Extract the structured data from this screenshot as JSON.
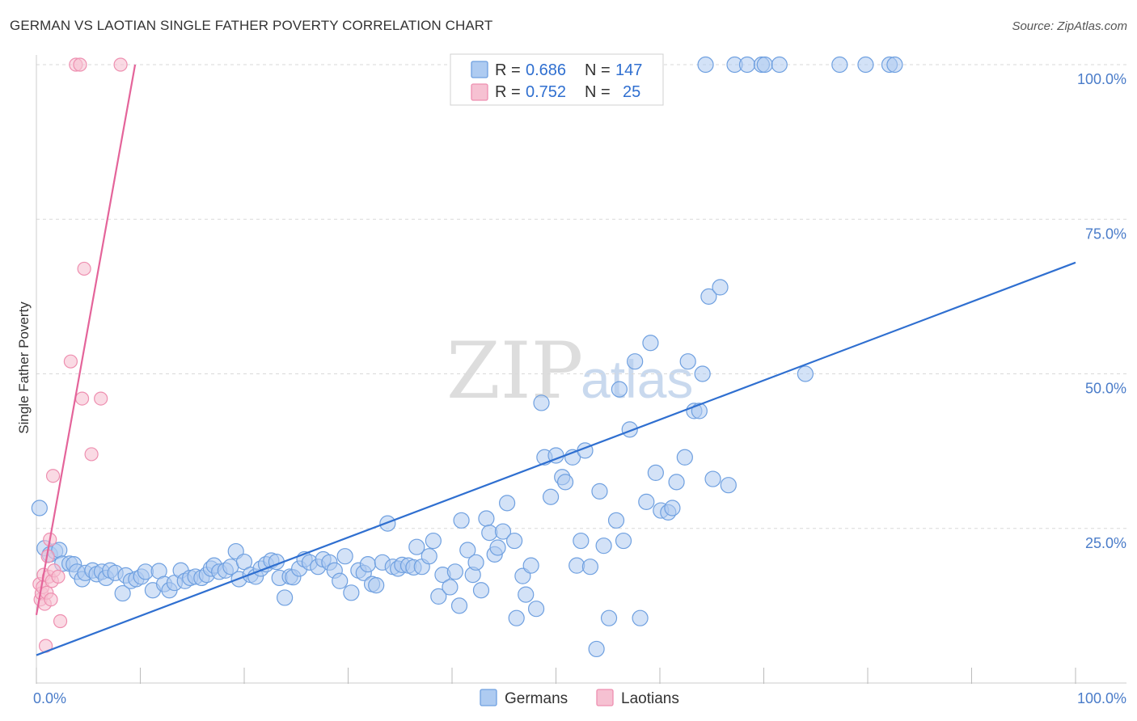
{
  "title": "GERMAN VS LAOTIAN SINGLE FATHER POVERTY CORRELATION CHART",
  "source": "Source: ZipAtlas.com",
  "watermark": {
    "zip": "ZIP",
    "atlas": "atlas"
  },
  "colors": {
    "german_fill": "#aecbf1",
    "german_stroke": "#6fa0e0",
    "german_line": "#2f6fd0",
    "laotian_fill": "#f6c1d2",
    "laotian_stroke": "#ee8fb0",
    "laotian_line": "#e4649a",
    "grid": "#d9d9d9",
    "axis_text": "#4a7cc9"
  },
  "legend": {
    "rows": [
      {
        "r_label": "R = ",
        "r_value": "0.686",
        "n_label": "N = ",
        "n_value": "147"
      },
      {
        "r_label": "R = ",
        "r_value": "0.752",
        "n_label": "N = ",
        "n_value": "25"
      }
    ]
  },
  "bottom_legend": {
    "germans": "Germans",
    "laotians": "Laotians"
  },
  "chart_data": {
    "type": "scatter",
    "title": "GERMAN VS LAOTIAN SINGLE FATHER POVERTY CORRELATION CHART",
    "xlabel": "",
    "ylabel": "Single Father Poverty",
    "xlim": [
      0,
      100
    ],
    "ylim": [
      0,
      100
    ],
    "x_tick_labels": [
      "0.0%",
      "100.0%"
    ],
    "y_ticks": [
      25,
      50,
      75,
      100
    ],
    "y_tick_labels": [
      "25.0%",
      "50.0%",
      "75.0%",
      "100.0%"
    ],
    "grid": true,
    "series": [
      {
        "name": "Germans",
        "r": 0.686,
        "n": 147,
        "trend": {
          "x": [
            0,
            100
          ],
          "y": [
            4.5,
            68
          ]
        },
        "points": [
          [
            0.3,
            28.3
          ],
          [
            0.8,
            21.8
          ],
          [
            1.3,
            20.8
          ],
          [
            1.8,
            21.3
          ],
          [
            2.2,
            21.5
          ],
          [
            2.5,
            19.3
          ],
          [
            3.2,
            19.3
          ],
          [
            3.6,
            19.2
          ],
          [
            3.9,
            18.0
          ],
          [
            4.4,
            16.8
          ],
          [
            4.7,
            17.8
          ],
          [
            5.4,
            18.2
          ],
          [
            5.8,
            17.6
          ],
          [
            6.3,
            18.0
          ],
          [
            6.7,
            17.0
          ],
          [
            7.1,
            18.2
          ],
          [
            7.6,
            17.8
          ],
          [
            8.3,
            14.5
          ],
          [
            8.6,
            17.4
          ],
          [
            9.1,
            16.5
          ],
          [
            9.6,
            16.8
          ],
          [
            10.1,
            17.2
          ],
          [
            10.5,
            18.0
          ],
          [
            11.2,
            15.0
          ],
          [
            11.8,
            18.1
          ],
          [
            12.3,
            16.0
          ],
          [
            12.8,
            15.0
          ],
          [
            13.3,
            16.2
          ],
          [
            13.9,
            18.2
          ],
          [
            14.3,
            16.5
          ],
          [
            14.8,
            17.0
          ],
          [
            15.3,
            17.2
          ],
          [
            15.9,
            17.0
          ],
          [
            16.4,
            17.5
          ],
          [
            16.8,
            18.5
          ],
          [
            17.1,
            19.0
          ],
          [
            17.6,
            18.0
          ],
          [
            18.2,
            18.2
          ],
          [
            18.7,
            18.8
          ],
          [
            19.2,
            21.3
          ],
          [
            19.5,
            16.8
          ],
          [
            20.0,
            19.6
          ],
          [
            20.6,
            17.5
          ],
          [
            21.1,
            17.2
          ],
          [
            21.6,
            18.5
          ],
          [
            22.1,
            19.2
          ],
          [
            22.6,
            19.8
          ],
          [
            23.1,
            19.6
          ],
          [
            23.4,
            17.0
          ],
          [
            23.9,
            13.8
          ],
          [
            24.4,
            17.2
          ],
          [
            24.7,
            17.1
          ],
          [
            25.3,
            18.5
          ],
          [
            25.8,
            20.0
          ],
          [
            26.3,
            19.5
          ],
          [
            27.1,
            18.8
          ],
          [
            27.6,
            20.0
          ],
          [
            28.2,
            19.5
          ],
          [
            28.7,
            18.2
          ],
          [
            29.2,
            16.5
          ],
          [
            29.7,
            20.5
          ],
          [
            30.3,
            14.6
          ],
          [
            31.0,
            18.2
          ],
          [
            31.5,
            17.8
          ],
          [
            31.9,
            19.2
          ],
          [
            32.3,
            16.0
          ],
          [
            32.7,
            15.8
          ],
          [
            33.3,
            19.5
          ],
          [
            33.8,
            25.8
          ],
          [
            34.3,
            18.8
          ],
          [
            34.8,
            18.5
          ],
          [
            35.2,
            19.1
          ],
          [
            35.8,
            19.0
          ],
          [
            36.3,
            18.7
          ],
          [
            36.6,
            22.0
          ],
          [
            37.1,
            18.8
          ],
          [
            37.8,
            20.5
          ],
          [
            38.2,
            23.0
          ],
          [
            38.7,
            14.0
          ],
          [
            39.1,
            17.5
          ],
          [
            39.8,
            15.5
          ],
          [
            40.3,
            18.0
          ],
          [
            40.7,
            12.5
          ],
          [
            40.9,
            26.3
          ],
          [
            41.5,
            21.5
          ],
          [
            42.0,
            17.5
          ],
          [
            42.3,
            19.5
          ],
          [
            42.8,
            15.0
          ],
          [
            43.3,
            26.6
          ],
          [
            43.6,
            24.3
          ],
          [
            44.1,
            20.8
          ],
          [
            44.4,
            21.9
          ],
          [
            44.9,
            24.5
          ],
          [
            45.3,
            29.1
          ],
          [
            46.0,
            23.0
          ],
          [
            46.2,
            10.5
          ],
          [
            46.8,
            17.3
          ],
          [
            47.1,
            14.3
          ],
          [
            47.6,
            19.0
          ],
          [
            48.1,
            12.0
          ],
          [
            48.6,
            45.3
          ],
          [
            48.9,
            36.5
          ],
          [
            49.5,
            30.1
          ],
          [
            50.0,
            36.8
          ],
          [
            50.6,
            33.3
          ],
          [
            50.9,
            32.5
          ],
          [
            51.6,
            36.5
          ],
          [
            52.0,
            19.0
          ],
          [
            52.4,
            23.0
          ],
          [
            52.8,
            37.6
          ],
          [
            53.3,
            18.8
          ],
          [
            53.9,
            5.5
          ],
          [
            54.2,
            31.0
          ],
          [
            54.6,
            22.2
          ],
          [
            55.1,
            10.5
          ],
          [
            55.8,
            26.3
          ],
          [
            56.1,
            47.5
          ],
          [
            56.5,
            23.0
          ],
          [
            57.1,
            41.0
          ],
          [
            57.6,
            52.0
          ],
          [
            58.1,
            10.5
          ],
          [
            58.7,
            29.3
          ],
          [
            59.1,
            55.0
          ],
          [
            59.6,
            34.0
          ],
          [
            60.1,
            27.9
          ],
          [
            60.8,
            27.6
          ],
          [
            61.2,
            28.3
          ],
          [
            61.6,
            32.5
          ],
          [
            62.4,
            36.5
          ],
          [
            62.7,
            52.0
          ],
          [
            63.3,
            44.0
          ],
          [
            63.8,
            44.0
          ],
          [
            64.1,
            50.0
          ],
          [
            64.7,
            62.5
          ],
          [
            65.1,
            33.0
          ],
          [
            65.8,
            64.0
          ],
          [
            66.6,
            32.0
          ],
          [
            67.2,
            100
          ],
          [
            68.4,
            100
          ],
          [
            69.8,
            100
          ],
          [
            70.1,
            100
          ],
          [
            71.5,
            100
          ],
          [
            74.0,
            50.0
          ],
          [
            77.3,
            100
          ],
          [
            79.8,
            100
          ],
          [
            82.1,
            100
          ],
          [
            82.6,
            100
          ],
          [
            64.4,
            100
          ]
        ]
      },
      {
        "name": "Laotians",
        "r": 0.752,
        "n": 25,
        "trend": {
          "x": [
            0,
            9.5
          ],
          "y": [
            11,
            100
          ]
        },
        "points": [
          [
            0.3,
            16.0
          ],
          [
            0.4,
            13.5
          ],
          [
            0.5,
            14.5
          ],
          [
            0.6,
            15.5
          ],
          [
            0.7,
            17.5
          ],
          [
            0.8,
            12.8
          ],
          [
            0.9,
            6.0
          ],
          [
            1.0,
            14.6
          ],
          [
            1.1,
            20.5
          ],
          [
            1.2,
            17.2
          ],
          [
            1.3,
            23.2
          ],
          [
            1.4,
            13.5
          ],
          [
            1.5,
            16.5
          ],
          [
            1.6,
            33.5
          ],
          [
            1.7,
            18.2
          ],
          [
            2.1,
            17.2
          ],
          [
            2.3,
            10.0
          ],
          [
            3.3,
            52.0
          ],
          [
            4.4,
            46.0
          ],
          [
            3.8,
            100
          ],
          [
            4.2,
            100
          ],
          [
            4.6,
            67.0
          ],
          [
            5.3,
            37.0
          ],
          [
            6.2,
            46.0
          ],
          [
            8.1,
            100
          ]
        ]
      }
    ]
  }
}
